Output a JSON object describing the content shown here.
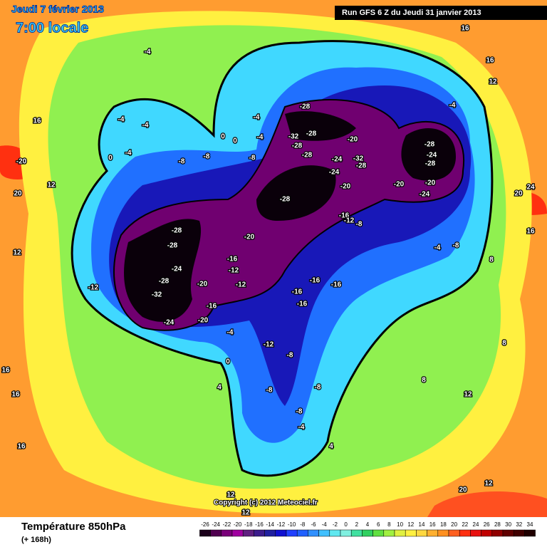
{
  "header": {
    "date": "Jeudi 7 février 2013",
    "time": "7:00 locale",
    "run": "Run GFS 6 Z du Jeudi 31 janvier 2013",
    "copyright": "Copyright (c) 2012 Meteociel.fr"
  },
  "footer": {
    "title": "Température 850hPa",
    "lead": "(+ 168h)"
  },
  "colorbar": {
    "ticks": [
      -26,
      -24,
      -22,
      -20,
      -18,
      -16,
      -14,
      -12,
      -10,
      -8,
      -6,
      -4,
      -2,
      0,
      2,
      4,
      6,
      8,
      10,
      12,
      14,
      16,
      18,
      20,
      22,
      24,
      26,
      28,
      30,
      32,
      34
    ],
    "colors": [
      "#1a001a",
      "#500050",
      "#7a007a",
      "#a000a0",
      "#602080",
      "#3c1c8c",
      "#2020a0",
      "#1010d0",
      "#2040ff",
      "#2060ff",
      "#3090ff",
      "#40c0ff",
      "#60e8f0",
      "#80f0e0",
      "#40e0a0",
      "#30d060",
      "#60e040",
      "#a0f040",
      "#e0f040",
      "#fff040",
      "#ffd840",
      "#ffb030",
      "#ff9020",
      "#ff6020",
      "#ff3010",
      "#e81010",
      "#c00000",
      "#900000",
      "#600000",
      "#400000",
      "#200000"
    ]
  },
  "map_labels": [
    16,
    16,
    12,
    -4,
    -4,
    -4,
    -4,
    -4,
    -4,
    0,
    0,
    0,
    -4,
    -8,
    -8,
    -8,
    16,
    -20,
    20,
    12,
    -28,
    -32,
    -28,
    -28,
    -28,
    -20,
    -24,
    -32,
    -28,
    -24,
    -20,
    -28,
    -28,
    -24,
    -28,
    -20,
    -24,
    -20,
    24,
    20,
    -16,
    -12,
    -8,
    -28,
    -28,
    -20,
    -24,
    -28,
    -32,
    -20,
    -16,
    -12,
    -12,
    -16,
    -20,
    -24,
    -12,
    -16,
    -16,
    -16,
    -16,
    -4,
    -8,
    16,
    12,
    8,
    -4,
    -12,
    -8,
    0,
    4,
    -8,
    -8,
    -8,
    -4,
    8,
    12,
    16,
    16,
    16,
    20,
    12,
    12,
    4,
    8,
    12
  ]
}
